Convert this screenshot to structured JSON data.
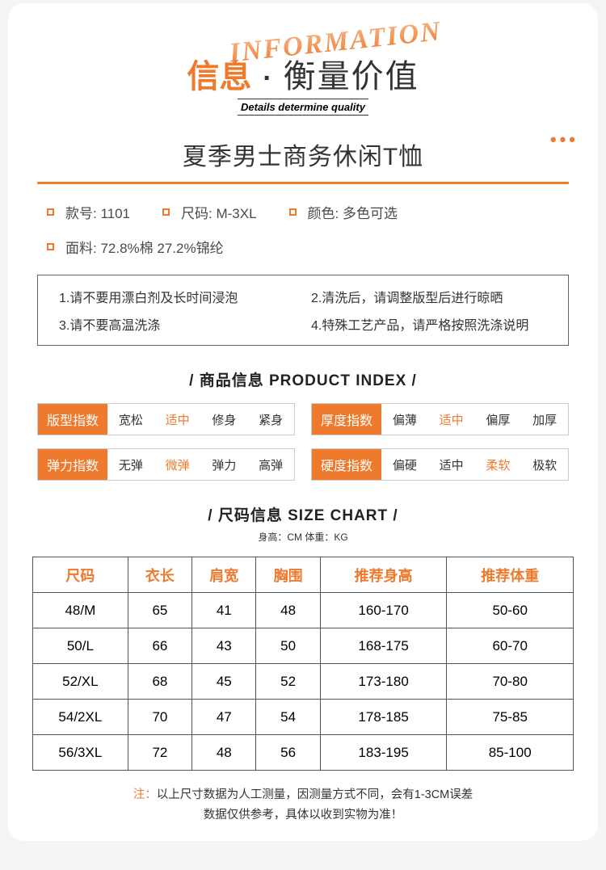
{
  "colors": {
    "accent": "#ed7a2d",
    "text": "#333333",
    "bg": "#ffffff"
  },
  "header": {
    "decor_word": "INFORMATION",
    "title_left": "信息",
    "title_dot": "·",
    "title_right": "衡量价值",
    "subtitle_en": "Details determine quality",
    "dots": "•••"
  },
  "product_title": "夏季男士商务休闲T恤",
  "specs": [
    "款号: 1101",
    "尺码: M-3XL",
    "颜色: 多色可选",
    "面料: 72.8%棉 27.2%锦纶"
  ],
  "care": [
    "1.请不要用漂白剂及长时间浸泡",
    "2.清洗后，请调整版型后进行晾晒",
    "3.请不要高温洗涤",
    "4.特殊工艺产品，请严格按照洗涤说明"
  ],
  "section_index": "/ 商品信息 PRODUCT INDEX /",
  "indexes": [
    {
      "label": "版型指数",
      "options": [
        "宽松",
        "适中",
        "修身",
        "紧身"
      ],
      "active": 1
    },
    {
      "label": "厚度指数",
      "options": [
        "偏薄",
        "适中",
        "偏厚",
        "加厚"
      ],
      "active": 1
    },
    {
      "label": "弹力指数",
      "options": [
        "无弹",
        "微弹",
        "弹力",
        "高弹"
      ],
      "active": 1
    },
    {
      "label": "硬度指数",
      "options": [
        "偏硬",
        "适中",
        "柔软",
        "极软"
      ],
      "active": 2
    }
  ],
  "section_size": "/ 尺码信息 SIZE CHART /",
  "size_subtitle": "身高：CM 体重：KG",
  "size_columns": [
    "尺码",
    "衣长",
    "肩宽",
    "胸围",
    "推荐身高",
    "推荐体重"
  ],
  "size_rows": [
    [
      "48/M",
      "65",
      "41",
      "48",
      "160-170",
      "50-60"
    ],
    [
      "50/L",
      "66",
      "43",
      "50",
      "168-175",
      "60-70"
    ],
    [
      "52/XL",
      "68",
      "45",
      "52",
      "173-180",
      "70-80"
    ],
    [
      "54/2XL",
      "70",
      "47",
      "54",
      "178-185",
      "75-85"
    ],
    [
      "56/3XL",
      "72",
      "48",
      "56",
      "183-195",
      "85-100"
    ]
  ],
  "note_prefix": "注：",
  "note_line1": "以上尺寸数据为人工测量，因测量方式不同，会有1-3CM误差",
  "note_line2": "数据仅供参考，具体以收到实物为准！"
}
